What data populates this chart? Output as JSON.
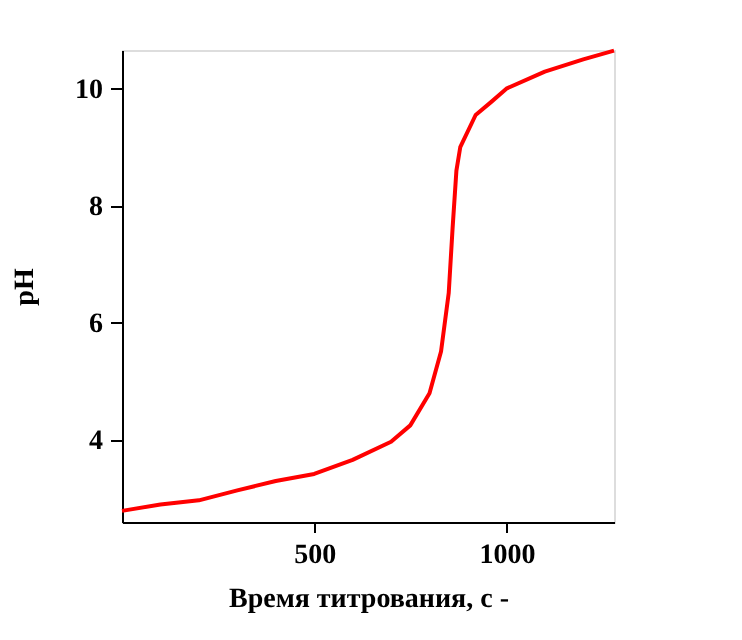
{
  "chart_data": {
    "type": "line",
    "xlabel": "Время титрования, с     -",
    "ylabel": "pH",
    "x": [
      0,
      100,
      200,
      300,
      400,
      500,
      600,
      700,
      750,
      800,
      830,
      850,
      860,
      870,
      880,
      920,
      960,
      1000,
      1100,
      1200,
      1280
    ],
    "series": [
      {
        "color": "#ff0000",
        "values": [
          2.79,
          2.9,
          2.97,
          3.14,
          3.3,
          3.42,
          3.66,
          3.97,
          4.25,
          4.8,
          5.51,
          6.51,
          7.61,
          8.6,
          9.0,
          9.55,
          9.77,
          10.0,
          10.29,
          10.5,
          10.65
        ]
      }
    ],
    "xlim": [
      0,
      1280
    ],
    "ylim": [
      2.6,
      10.66
    ],
    "xticks": [
      500,
      1000
    ],
    "yticks": [
      4,
      6,
      8,
      10
    ],
    "grid": false,
    "marker": "none",
    "line_style": "solid"
  }
}
